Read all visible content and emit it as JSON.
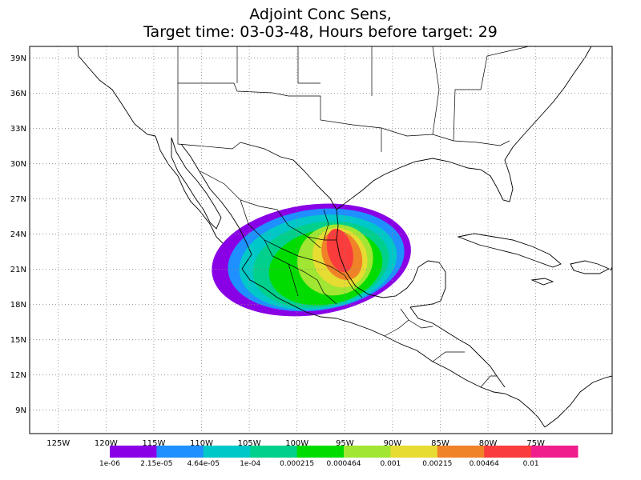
{
  "title": {
    "line1": "Adjoint Conc Sens,",
    "line2": "Target time: 03-03-48, Hours before target: 29"
  },
  "map": {
    "lon_range": [
      -128,
      -67
    ],
    "lat_range": [
      7,
      40
    ],
    "lon_ticks": [
      "125W",
      "120W",
      "115W",
      "110W",
      "105W",
      "100W",
      "95W",
      "90W",
      "85W",
      "80W",
      "75W"
    ],
    "lat_ticks": [
      "39N",
      "36N",
      "33N",
      "30N",
      "27N",
      "24N",
      "21N",
      "18N",
      "15N",
      "12N",
      "9N"
    ],
    "grid": "dotted"
  },
  "colorbar": {
    "colors": [
      "#8a00e6",
      "#1e90ff",
      "#00c8c8",
      "#00d08c",
      "#00dc00",
      "#a0e632",
      "#e6dc32",
      "#f08228",
      "#fa3c3c",
      "#f01e8c"
    ],
    "labels": [
      "1e-06",
      "2.15e-05",
      "4.64e-05",
      "1e-04",
      "0.000215",
      "0.000464",
      "0.001",
      "0.00215",
      "0.00464",
      "0.01"
    ]
  },
  "plume": {
    "levels": [
      {
        "color": "#8a00e6",
        "lon": -98.5,
        "lat": 21.8,
        "rlon": 10.5,
        "rlat": 4.7,
        "rot": -8
      },
      {
        "color": "#1e90ff",
        "lon": -98.0,
        "lat": 21.8,
        "rlon": 9.3,
        "rlat": 4.3,
        "rot": -8
      },
      {
        "color": "#00c8c8",
        "lon": -97.8,
        "lat": 21.6,
        "rlon": 8.3,
        "rlat": 4.0,
        "rot": -8
      },
      {
        "color": "#00d08c",
        "lon": -97.5,
        "lat": 21.4,
        "rlon": 7.2,
        "rlat": 3.6,
        "rot": -10
      },
      {
        "color": "#00dc00",
        "lon": -97.0,
        "lat": 21.2,
        "rlon": 6.0,
        "rlat": 3.2,
        "rot": -10
      },
      {
        "color": "#a0e632",
        "lon": -96.0,
        "lat": 21.8,
        "rlon": 4.0,
        "rlat": 3.0,
        "rot": -20
      },
      {
        "color": "#e6dc32",
        "lon": -95.5,
        "lat": 22.0,
        "rlon": 2.8,
        "rlat": 2.6,
        "rot": -25
      },
      {
        "color": "#f08228",
        "lon": -95.3,
        "lat": 22.2,
        "rlon": 2.0,
        "rlat": 2.2,
        "rot": -25
      },
      {
        "color": "#fa3c3c",
        "lon": -95.5,
        "lat": 22.6,
        "rlon": 1.3,
        "rlat": 1.9,
        "rot": -15
      }
    ]
  }
}
